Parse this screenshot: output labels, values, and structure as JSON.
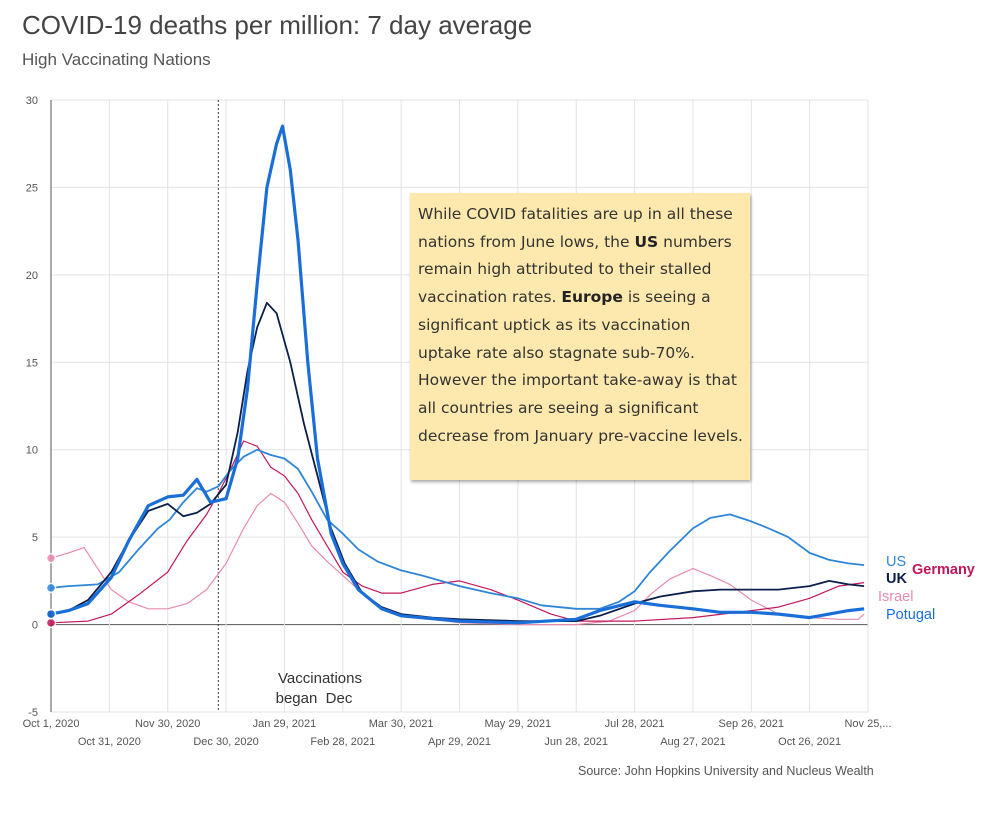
{
  "title": "COVID-19 deaths per million: 7 day average",
  "subtitle": "High Vaccinating Nations",
  "source": "Source: John Hopkins University and Nucleus Wealth",
  "note": {
    "p1": "While COVID fatalities are up in all these nations from June lows, the ",
    "us": "US",
    "p2": " numbers remain high attributed to their stalled vaccination rates. ",
    "europe": "Europe",
    "p3": " is seeing a significant uptick as its vaccination uptake rate  also stagnate sub-70%. However the important take-away is that all countries are seeing a significant decrease from January pre-vaccine levels."
  },
  "annotation": {
    "line1": "Vaccinations",
    "line2": "began  Dec",
    "date": "2020-12-26"
  },
  "colors": {
    "US": "#2f86d6",
    "UK": "#0b1f4d",
    "Germany": "#c2185b",
    "Israel": "#e88ab0",
    "Potugal": "#1a6ed8"
  },
  "chart_data": {
    "type": "line",
    "title": "COVID-19 deaths per million: 7 day average",
    "subtitle": "High Vaccinating Nations",
    "ylim": [
      -5,
      30
    ],
    "yticks": [
      -5,
      0,
      5,
      10,
      15,
      20,
      25,
      30
    ],
    "xlim": [
      "2020-10-01",
      "2021-11-25"
    ],
    "xticks": [
      {
        "date": "2020-10-01",
        "label": "Oct 1, 2020",
        "row": 0
      },
      {
        "date": "2020-10-31",
        "label": "Oct 31, 2020",
        "row": 1
      },
      {
        "date": "2020-11-30",
        "label": "Nov 30, 2020",
        "row": 0
      },
      {
        "date": "2020-12-30",
        "label": "Dec 30, 2020",
        "row": 1
      },
      {
        "date": "2021-01-29",
        "label": "Jan 29, 2021",
        "row": 0
      },
      {
        "date": "2021-02-28",
        "label": "Feb 28, 2021",
        "row": 1
      },
      {
        "date": "2021-03-30",
        "label": "Mar 30, 2021",
        "row": 0
      },
      {
        "date": "2021-04-29",
        "label": "Apr 29, 2021",
        "row": 1
      },
      {
        "date": "2021-05-29",
        "label": "May 29, 2021",
        "row": 0
      },
      {
        "date": "2021-06-28",
        "label": "Jun 28, 2021",
        "row": 1
      },
      {
        "date": "2021-07-28",
        "label": "Jul 28, 2021",
        "row": 0
      },
      {
        "date": "2021-08-27",
        "label": "Aug 27, 2021",
        "row": 1
      },
      {
        "date": "2021-09-26",
        "label": "Sep 26, 2021",
        "row": 0
      },
      {
        "date": "2021-10-26",
        "label": "Oct 26, 2021",
        "row": 1
      },
      {
        "date": "2021-11-25",
        "label": "Nov 25,...",
        "row": 0
      }
    ],
    "grid": true,
    "legend": "right",
    "series": [
      {
        "name": "US",
        "color": "#2f86d6",
        "width": 1.8,
        "points": [
          [
            "2020-10-01",
            2.1
          ],
          [
            "2020-10-10",
            2.2
          ],
          [
            "2020-10-25",
            2.3
          ],
          [
            "2020-11-05",
            3.0
          ],
          [
            "2020-11-15",
            4.3
          ],
          [
            "2020-11-25",
            5.5
          ],
          [
            "2020-12-01",
            6.0
          ],
          [
            "2020-12-08",
            7.0
          ],
          [
            "2020-12-15",
            7.8
          ],
          [
            "2020-12-20",
            7.6
          ],
          [
            "2020-12-26",
            7.9
          ],
          [
            "2021-01-01",
            8.8
          ],
          [
            "2021-01-08",
            9.6
          ],
          [
            "2021-01-15",
            10.0
          ],
          [
            "2021-01-22",
            9.7
          ],
          [
            "2021-01-29",
            9.5
          ],
          [
            "2021-02-05",
            8.9
          ],
          [
            "2021-02-12",
            7.6
          ],
          [
            "2021-02-20",
            6.0
          ],
          [
            "2021-02-28",
            5.2
          ],
          [
            "2021-03-08",
            4.3
          ],
          [
            "2021-03-18",
            3.6
          ],
          [
            "2021-03-30",
            3.1
          ],
          [
            "2021-04-10",
            2.8
          ],
          [
            "2021-04-29",
            2.2
          ],
          [
            "2021-05-15",
            1.8
          ],
          [
            "2021-05-29",
            1.5
          ],
          [
            "2021-06-10",
            1.1
          ],
          [
            "2021-06-28",
            0.9
          ],
          [
            "2021-07-10",
            0.9
          ],
          [
            "2021-07-20",
            1.3
          ],
          [
            "2021-07-28",
            1.9
          ],
          [
            "2021-08-05",
            3.0
          ],
          [
            "2021-08-15",
            4.2
          ],
          [
            "2021-08-27",
            5.5
          ],
          [
            "2021-09-05",
            6.1
          ],
          [
            "2021-09-15",
            6.3
          ],
          [
            "2021-09-26",
            5.9
          ],
          [
            "2021-10-05",
            5.5
          ],
          [
            "2021-10-15",
            5.0
          ],
          [
            "2021-10-26",
            4.1
          ],
          [
            "2021-11-05",
            3.7
          ],
          [
            "2021-11-15",
            3.5
          ],
          [
            "2021-11-23",
            3.4
          ]
        ]
      },
      {
        "name": "UK",
        "color": "#0b1f4d",
        "width": 1.8,
        "points": [
          [
            "2020-10-01",
            0.6
          ],
          [
            "2020-10-10",
            0.8
          ],
          [
            "2020-10-20",
            1.4
          ],
          [
            "2020-11-01",
            3.0
          ],
          [
            "2020-11-10",
            4.8
          ],
          [
            "2020-11-20",
            6.5
          ],
          [
            "2020-11-30",
            6.9
          ],
          [
            "2020-12-08",
            6.2
          ],
          [
            "2020-12-15",
            6.4
          ],
          [
            "2020-12-22",
            6.9
          ],
          [
            "2020-12-30",
            8.0
          ],
          [
            "2021-01-05",
            11.0
          ],
          [
            "2021-01-10",
            14.5
          ],
          [
            "2021-01-15",
            17.0
          ],
          [
            "2021-01-20",
            18.4
          ],
          [
            "2021-01-25",
            17.8
          ],
          [
            "2021-02-01",
            15.0
          ],
          [
            "2021-02-08",
            11.5
          ],
          [
            "2021-02-15",
            8.5
          ],
          [
            "2021-02-22",
            5.5
          ],
          [
            "2021-03-01",
            3.5
          ],
          [
            "2021-03-10",
            1.8
          ],
          [
            "2021-03-20",
            1.0
          ],
          [
            "2021-03-30",
            0.6
          ],
          [
            "2021-04-15",
            0.4
          ],
          [
            "2021-04-29",
            0.3
          ],
          [
            "2021-05-29",
            0.2
          ],
          [
            "2021-06-28",
            0.2
          ],
          [
            "2021-07-10",
            0.5
          ],
          [
            "2021-07-28",
            1.2
          ],
          [
            "2021-08-10",
            1.6
          ],
          [
            "2021-08-27",
            1.9
          ],
          [
            "2021-09-10",
            2.0
          ],
          [
            "2021-09-26",
            2.0
          ],
          [
            "2021-10-10",
            2.0
          ],
          [
            "2021-10-26",
            2.2
          ],
          [
            "2021-11-05",
            2.5
          ],
          [
            "2021-11-15",
            2.3
          ],
          [
            "2021-11-23",
            2.2
          ]
        ]
      },
      {
        "name": "Germany",
        "color": "#c2185b",
        "width": 1.2,
        "points": [
          [
            "2020-10-01",
            0.1
          ],
          [
            "2020-10-20",
            0.2
          ],
          [
            "2020-11-01",
            0.6
          ],
          [
            "2020-11-15",
            1.7
          ],
          [
            "2020-11-30",
            3.0
          ],
          [
            "2020-12-10",
            4.8
          ],
          [
            "2020-12-20",
            6.3
          ],
          [
            "2020-12-26",
            7.5
          ],
          [
            "2021-01-01",
            8.8
          ],
          [
            "2021-01-08",
            10.5
          ],
          [
            "2021-01-15",
            10.2
          ],
          [
            "2021-01-22",
            9.0
          ],
          [
            "2021-01-29",
            8.5
          ],
          [
            "2021-02-05",
            7.5
          ],
          [
            "2021-02-12",
            6.0
          ],
          [
            "2021-02-20",
            4.5
          ],
          [
            "2021-02-28",
            3.0
          ],
          [
            "2021-03-10",
            2.2
          ],
          [
            "2021-03-20",
            1.8
          ],
          [
            "2021-03-30",
            1.8
          ],
          [
            "2021-04-15",
            2.3
          ],
          [
            "2021-04-29",
            2.5
          ],
          [
            "2021-05-15",
            2.0
          ],
          [
            "2021-05-29",
            1.4
          ],
          [
            "2021-06-15",
            0.6
          ],
          [
            "2021-06-28",
            0.2
          ],
          [
            "2021-07-28",
            0.2
          ],
          [
            "2021-08-27",
            0.4
          ],
          [
            "2021-09-26",
            0.8
          ],
          [
            "2021-10-10",
            1.0
          ],
          [
            "2021-10-26",
            1.5
          ],
          [
            "2021-11-10",
            2.2
          ],
          [
            "2021-11-23",
            2.4
          ]
        ]
      },
      {
        "name": "Israel",
        "color": "#e88ab0",
        "width": 1.2,
        "points": [
          [
            "2020-10-01",
            3.8
          ],
          [
            "2020-10-10",
            4.1
          ],
          [
            "2020-10-18",
            4.4
          ],
          [
            "2020-10-25",
            3.2
          ],
          [
            "2020-11-01",
            2.0
          ],
          [
            "2020-11-10",
            1.3
          ],
          [
            "2020-11-20",
            0.9
          ],
          [
            "2020-11-30",
            0.9
          ],
          [
            "2020-12-10",
            1.2
          ],
          [
            "2020-12-20",
            2.0
          ],
          [
            "2020-12-30",
            3.5
          ],
          [
            "2021-01-08",
            5.5
          ],
          [
            "2021-01-15",
            6.8
          ],
          [
            "2021-01-22",
            7.5
          ],
          [
            "2021-01-29",
            7.0
          ],
          [
            "2021-02-05",
            5.8
          ],
          [
            "2021-02-12",
            4.5
          ],
          [
            "2021-02-20",
            3.6
          ],
          [
            "2021-02-28",
            2.8
          ],
          [
            "2021-03-08",
            2.0
          ],
          [
            "2021-03-20",
            1.0
          ],
          [
            "2021-03-30",
            0.5
          ],
          [
            "2021-04-15",
            0.3
          ],
          [
            "2021-04-29",
            0.1
          ],
          [
            "2021-05-29",
            0.0
          ],
          [
            "2021-06-28",
            0.0
          ],
          [
            "2021-07-15",
            0.2
          ],
          [
            "2021-07-28",
            0.8
          ],
          [
            "2021-08-05",
            1.7
          ],
          [
            "2021-08-15",
            2.6
          ],
          [
            "2021-08-27",
            3.2
          ],
          [
            "2021-09-05",
            2.8
          ],
          [
            "2021-09-15",
            2.3
          ],
          [
            "2021-09-26",
            1.4
          ],
          [
            "2021-10-10",
            0.6
          ],
          [
            "2021-10-26",
            0.4
          ],
          [
            "2021-11-10",
            0.3
          ],
          [
            "2021-11-20",
            0.3
          ],
          [
            "2021-11-23",
            0.6
          ]
        ]
      },
      {
        "name": "Potugal",
        "color": "#1a6ed8",
        "width": 3.2,
        "points": [
          [
            "2020-10-01",
            0.6
          ],
          [
            "2020-10-10",
            0.8
          ],
          [
            "2020-10-20",
            1.2
          ],
          [
            "2020-11-01",
            2.7
          ],
          [
            "2020-11-10",
            4.8
          ],
          [
            "2020-11-20",
            6.8
          ],
          [
            "2020-11-30",
            7.3
          ],
          [
            "2020-12-08",
            7.4
          ],
          [
            "2020-12-15",
            8.3
          ],
          [
            "2020-12-22",
            7.0
          ],
          [
            "2020-12-30",
            7.2
          ],
          [
            "2021-01-05",
            9.5
          ],
          [
            "2021-01-10",
            13.5
          ],
          [
            "2021-01-15",
            19.5
          ],
          [
            "2021-01-20",
            25.0
          ],
          [
            "2021-01-25",
            27.5
          ],
          [
            "2021-01-28",
            28.5
          ],
          [
            "2021-02-01",
            26.0
          ],
          [
            "2021-02-05",
            22.0
          ],
          [
            "2021-02-10",
            15.0
          ],
          [
            "2021-02-15",
            9.5
          ],
          [
            "2021-02-22",
            5.2
          ],
          [
            "2021-02-28",
            3.5
          ],
          [
            "2021-03-08",
            2.0
          ],
          [
            "2021-03-20",
            0.9
          ],
          [
            "2021-03-30",
            0.5
          ],
          [
            "2021-04-29",
            0.2
          ],
          [
            "2021-05-29",
            0.1
          ],
          [
            "2021-06-28",
            0.3
          ],
          [
            "2021-07-10",
            0.8
          ],
          [
            "2021-07-28",
            1.3
          ],
          [
            "2021-08-10",
            1.1
          ],
          [
            "2021-08-27",
            0.9
          ],
          [
            "2021-09-10",
            0.7
          ],
          [
            "2021-09-26",
            0.7
          ],
          [
            "2021-10-10",
            0.6
          ],
          [
            "2021-10-26",
            0.4
          ],
          [
            "2021-11-05",
            0.6
          ],
          [
            "2021-11-15",
            0.8
          ],
          [
            "2021-11-23",
            0.9
          ]
        ]
      }
    ]
  }
}
